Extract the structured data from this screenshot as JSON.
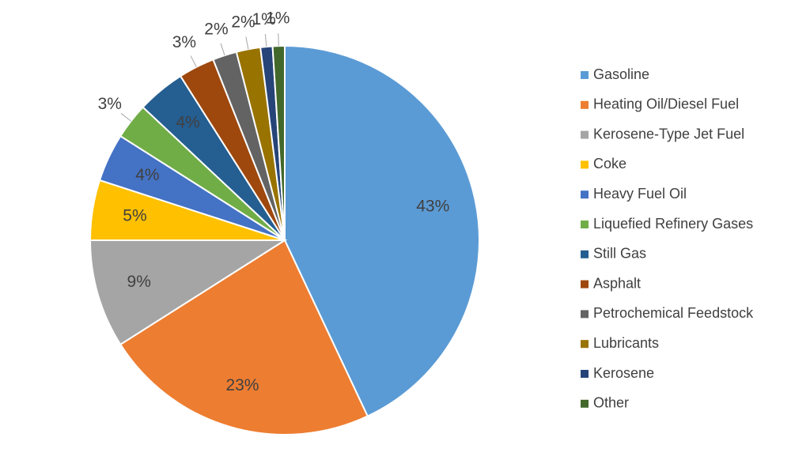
{
  "chart_data": {
    "type": "pie",
    "categories": [
      "Gasoline",
      "Heating Oil/Diesel Fuel",
      "Kerosene-Type Jet Fuel",
      "Coke",
      "Heavy Fuel Oil",
      "Liquefied Refinery Gases",
      "Still Gas",
      "Asphalt",
      "Petrochemical Feedstock",
      "Lubricants",
      "Kerosene",
      "Other"
    ],
    "values": [
      43,
      23,
      9,
      5,
      4,
      3,
      4,
      3,
      2,
      2,
      1,
      1
    ],
    "value_labels": [
      "43%",
      "23%",
      "9%",
      "5%",
      "4%",
      "3%",
      "4%",
      "3%",
      "2%",
      "2%",
      "1%",
      "1%"
    ],
    "colors": [
      "#5b9bd5",
      "#ed7d31",
      "#a5a5a5",
      "#ffc000",
      "#4472c4",
      "#70ad47",
      "#255e91",
      "#9e480e",
      "#636363",
      "#997300",
      "#264478",
      "#43682b"
    ],
    "legend": "right"
  }
}
